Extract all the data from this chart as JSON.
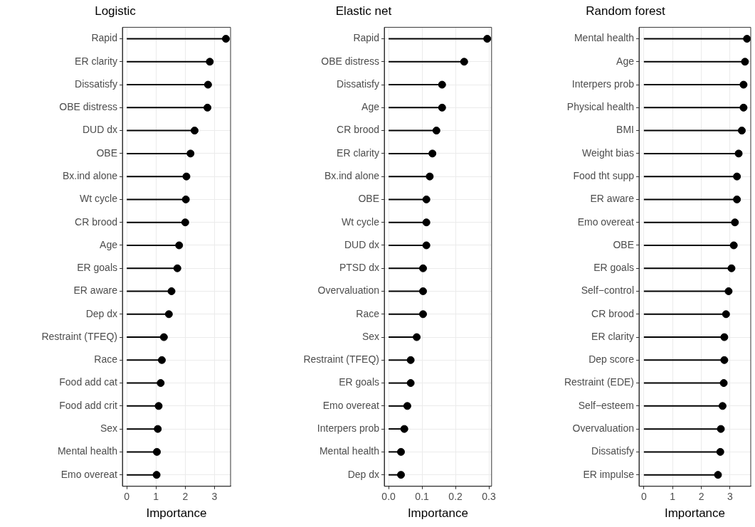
{
  "chart_data": [
    {
      "type": "lollipop",
      "title": "Logistic",
      "xlabel": "Importance",
      "orientation": "horizontal",
      "grid": true,
      "marker": "circle",
      "color": "#000000",
      "xlim": [
        -0.15,
        3.55
      ],
      "xticks": [
        0,
        1,
        2,
        3
      ],
      "categories": [
        "Rapid",
        "ER clarity",
        "Dissatisfy",
        "OBE distress",
        "DUD dx",
        "OBE",
        "Bx.ind alone",
        "Wt cycle",
        "CR brood",
        "Age",
        "ER goals",
        "ER aware",
        "Dep dx",
        "Restraint (TFEQ)",
        "Race",
        "Food add cat",
        "Food add crit",
        "Sex",
        "Mental health",
        "Emo overeat"
      ],
      "values": [
        3.39,
        2.84,
        2.78,
        2.76,
        2.32,
        2.18,
        2.04,
        2.02,
        2.0,
        1.79,
        1.73,
        1.53,
        1.44,
        1.27,
        1.2,
        1.16,
        1.09,
        1.06,
        1.03,
        1.02
      ]
    },
    {
      "type": "lollipop",
      "title": "Elastic net",
      "xlabel": "Importance",
      "orientation": "horizontal",
      "grid": true,
      "marker": "circle",
      "color": "#000000",
      "xlim": [
        -0.013,
        0.308
      ],
      "xticks": [
        {
          "value": 0,
          "label": "0.0"
        },
        0.1,
        0.2,
        0.3
      ],
      "categories": [
        "Rapid",
        "OBE distress",
        "Dissatisfy",
        "Age",
        "CR brood",
        "ER clarity",
        "Bx.ind alone",
        "OBE",
        "Wt cycle",
        "DUD dx",
        "PTSD dx",
        "Overvaluation",
        "Race",
        "Sex",
        "Restraint (TFEQ)",
        "ER goals",
        "Emo overeat",
        "Interpers prob",
        "Mental health",
        "Dep dx"
      ],
      "values": [
        0.295,
        0.226,
        0.16,
        0.16,
        0.143,
        0.131,
        0.123,
        0.113,
        0.113,
        0.113,
        0.103,
        0.103,
        0.103,
        0.084,
        0.066,
        0.066,
        0.056,
        0.047,
        0.037,
        0.037
      ]
    },
    {
      "type": "lollipop",
      "title": "Random forest",
      "xlabel": "Importance",
      "orientation": "horizontal",
      "grid": true,
      "marker": "circle",
      "color": "#000000",
      "xlim": [
        -0.17,
        3.72
      ],
      "xticks": [
        0,
        1,
        2,
        3
      ],
      "categories": [
        "Mental health",
        "Age",
        "Interpers prob",
        "Physical health",
        "BMI",
        "Weight bias",
        "Food tht supp",
        "ER aware",
        "Emo overeat",
        "OBE",
        "ER goals",
        "Self−control",
        "CR brood",
        "ER clarity",
        "Dep score",
        "Restraint (EDE)",
        "Self−esteem",
        "Overvaluation",
        "Dissatisfy",
        "ER impulse"
      ],
      "values": [
        3.59,
        3.52,
        3.47,
        3.47,
        3.41,
        3.3,
        3.24,
        3.24,
        3.17,
        3.13,
        3.05,
        2.95,
        2.86,
        2.8,
        2.8,
        2.78,
        2.74,
        2.68,
        2.66,
        2.58
      ]
    }
  ]
}
